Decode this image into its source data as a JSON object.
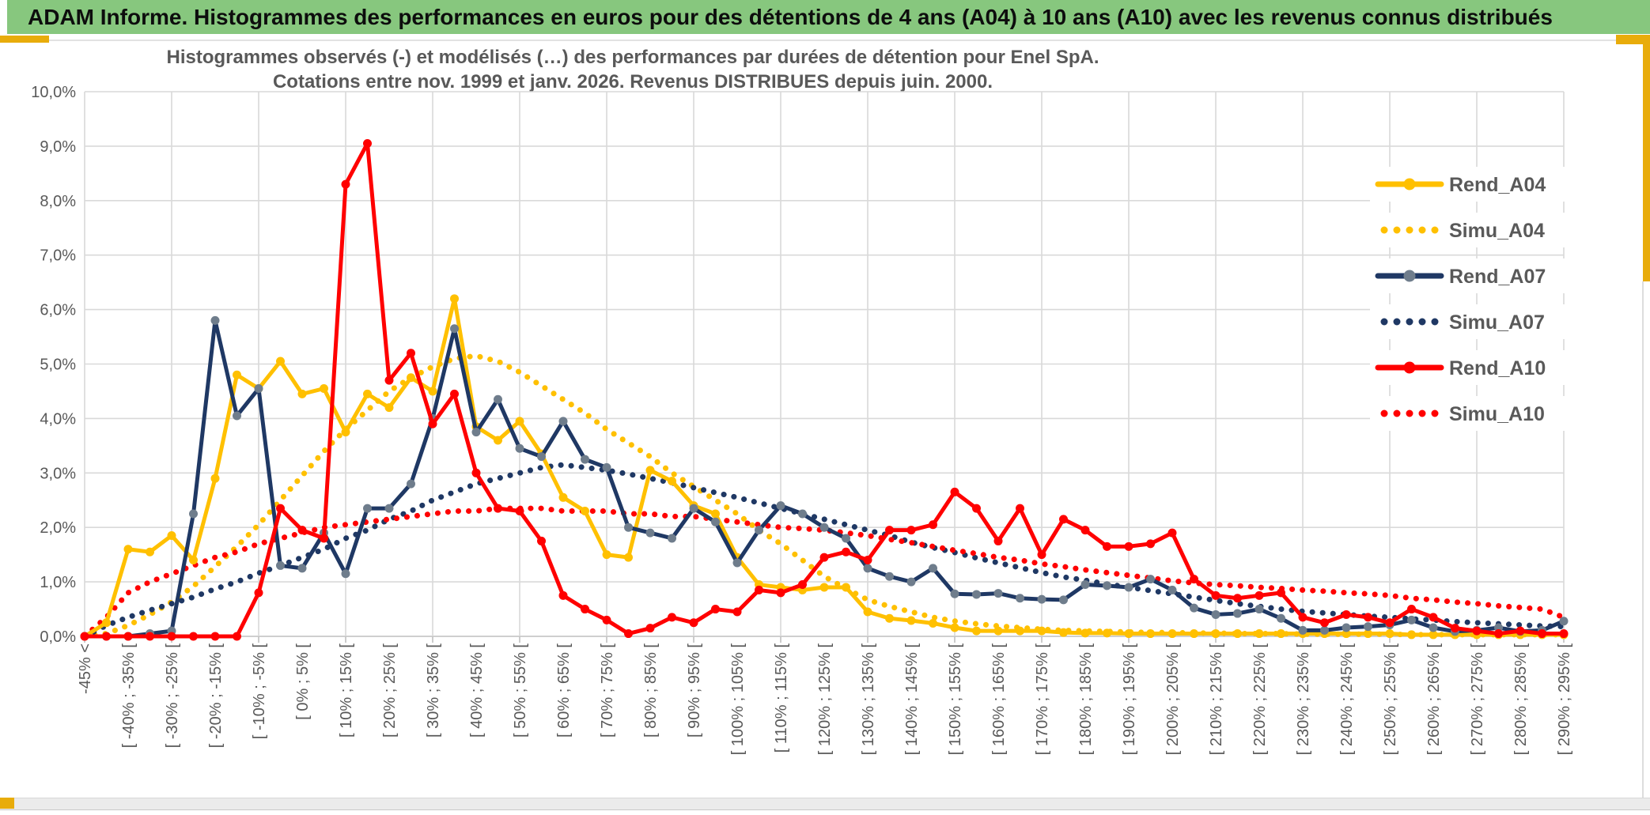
{
  "banner": {
    "title": "ADAM Informe. Histogrammes des performances en euros pour des détentions de 4 ans (A04) à 10 ans (A10) avec les revenus connus distribués"
  },
  "colors": {
    "banner_bg": "#87C77E",
    "accent_gold": "#E8AC0B",
    "series_yellow": "#FFC000",
    "series_navy": "#1F3864",
    "series_red": "#FF0000",
    "navy_marker": "#6F7D8C",
    "grid": "#D9D9D9",
    "axis": "#BFBFBF",
    "text_gray": "#595959"
  },
  "chart_data": {
    "type": "line",
    "title_line1": "Histogrammes observés (-) et modélisés (…) des performances par durées de détention pour Enel SpA.",
    "title_line2": "Cotations entre nov. 1999 et janv. 2026. Revenus DISTRIBUES depuis juin. 2000.",
    "ylim": [
      0,
      10
    ],
    "grid": true,
    "legend_position": "right",
    "y_ticks": [
      "0,0%",
      "1,0%",
      "2,0%",
      "3,0%",
      "4,0%",
      "5,0%",
      "6,0%",
      "7,0%",
      "8,0%",
      "9,0%",
      "10,0%"
    ],
    "n_bins": 69,
    "bin_width_pct": 5,
    "x_label_every": 2,
    "x_tick_labels": [
      "-45% <",
      "[ -40% ; -35% [",
      "[ -30% ; -25% [",
      "[ -20% ; -15% [",
      "[ -10% ; -5% [",
      "[ 0% ; 5% [",
      "[ 10% ; 15% [",
      "[ 20% ; 25% [",
      "[ 30% ; 35% [",
      "[ 40% ; 45% [",
      "[ 50% ; 55% [",
      "[ 60% ; 65% [",
      "[ 70% ; 75% [",
      "[ 80% ; 85% [",
      "[ 90% ; 95% [",
      "[ 100% ; 105% [",
      "[ 110% ; 115% [",
      "[ 120% ; 125% [",
      "[ 130% ; 135% [",
      "[ 140% ; 145% [",
      "[ 150% ; 155% [",
      "[ 160% ; 165% [",
      "[ 170% ; 175% [",
      "[ 180% ; 185% [",
      "[ 190% ; 195% [",
      "[ 200% ; 205% [",
      "[ 210% ; 215% [",
      "[ 220% ; 225% [",
      "[ 230% ; 235% [",
      "[ 240% ; 245% [",
      "[ 250% ; 255% [",
      "[ 260% ; 265% [",
      "[ 270% ; 275% [",
      "[ 280% ; 285% [",
      "[ 290% ; 295% ["
    ],
    "series": [
      {
        "name": "Rend_A04",
        "style": "solid",
        "color": "#FFC000",
        "marker": "#FFC000",
        "values": [
          0,
          0.25,
          1.6,
          1.55,
          1.85,
          1.4,
          2.9,
          4.8,
          4.55,
          5.05,
          4.45,
          4.55,
          3.75,
          4.45,
          4.2,
          4.75,
          4.5,
          6.2,
          3.85,
          3.6,
          3.95,
          3.35,
          2.55,
          2.3,
          1.5,
          1.45,
          3.05,
          2.85,
          2.4,
          2.25,
          1.45,
          0.95,
          0.9,
          0.85,
          0.9,
          0.9,
          0.45,
          0.33,
          0.29,
          0.24,
          0.16,
          0.1,
          0.1,
          0.1,
          0.1,
          0.07,
          0.06,
          0.06,
          0.05,
          0.05,
          0.05,
          0.05,
          0.05,
          0.05,
          0.05,
          0.05,
          0.05,
          0.05,
          0.05,
          0.05,
          0.05,
          0.03,
          0.03,
          0.03,
          0.03,
          0.03,
          0.03,
          0.03,
          0.03
        ]
      },
      {
        "name": "Simu_A04",
        "style": "dotted",
        "color": "#FFC000",
        "values": [
          0,
          0.05,
          0.2,
          0.4,
          0.63,
          0.92,
          1.28,
          1.65,
          2.05,
          2.5,
          2.95,
          3.4,
          3.8,
          4.15,
          4.5,
          4.75,
          4.95,
          5.1,
          5.15,
          5.05,
          4.85,
          4.6,
          4.35,
          4.1,
          3.8,
          3.55,
          3.3,
          3.0,
          2.75,
          2.5,
          2.25,
          1.95,
          1.7,
          1.4,
          1.1,
          0.88,
          0.67,
          0.55,
          0.45,
          0.35,
          0.28,
          0.23,
          0.19,
          0.16,
          0.13,
          0.11,
          0.1,
          0.09,
          0.08,
          0.07,
          0.07,
          0.06,
          0.06,
          0.05,
          0.05,
          0.05,
          0.04,
          0.04,
          0.04,
          0.04,
          0.04,
          0.03,
          0.03,
          0.03,
          0.03,
          0.03,
          0.03,
          0.03,
          0.03
        ]
      },
      {
        "name": "Rend_A07",
        "style": "solid",
        "color": "#1F3864",
        "marker": "#6F7D8C",
        "values": [
          0,
          0,
          0,
          0.05,
          0.1,
          2.25,
          5.8,
          4.05,
          4.55,
          1.3,
          1.25,
          1.9,
          1.15,
          2.35,
          2.35,
          2.8,
          4.0,
          5.65,
          3.75,
          4.35,
          3.45,
          3.3,
          3.95,
          3.25,
          3.1,
          2.0,
          1.9,
          1.8,
          2.35,
          2.1,
          1.35,
          1.95,
          2.4,
          2.25,
          2.0,
          1.8,
          1.25,
          1.1,
          1.0,
          1.25,
          0.78,
          0.77,
          0.79,
          0.7,
          0.68,
          0.67,
          0.95,
          0.93,
          0.9,
          1.05,
          0.85,
          0.52,
          0.4,
          0.42,
          0.5,
          0.33,
          0.11,
          0.11,
          0.16,
          0.18,
          0.21,
          0.3,
          0.16,
          0.09,
          0.11,
          0.16,
          0.09,
          0.11,
          0.28
        ]
      },
      {
        "name": "Simu_A07",
        "style": "dotted",
        "color": "#1F3864",
        "values": [
          0,
          0.2,
          0.35,
          0.48,
          0.6,
          0.72,
          0.87,
          1.0,
          1.16,
          1.3,
          1.45,
          1.6,
          1.8,
          1.95,
          2.15,
          2.3,
          2.5,
          2.65,
          2.8,
          2.9,
          3.0,
          3.1,
          3.15,
          3.1,
          3.05,
          2.98,
          2.9,
          2.82,
          2.73,
          2.64,
          2.55,
          2.45,
          2.35,
          2.25,
          2.15,
          2.05,
          1.95,
          1.85,
          1.73,
          1.63,
          1.54,
          1.44,
          1.35,
          1.26,
          1.17,
          1.09,
          1.03,
          0.96,
          0.9,
          0.84,
          0.78,
          0.72,
          0.66,
          0.6,
          0.55,
          0.5,
          0.46,
          0.43,
          0.4,
          0.37,
          0.35,
          0.32,
          0.3,
          0.27,
          0.25,
          0.23,
          0.21,
          0.19,
          0.18
        ]
      },
      {
        "name": "Rend_A10",
        "style": "solid",
        "color": "#FF0000",
        "marker": "#FF0000",
        "values": [
          0,
          0,
          0,
          0,
          0,
          0,
          0,
          0,
          0.8,
          2.35,
          1.95,
          1.8,
          8.3,
          9.05,
          4.7,
          5.2,
          3.9,
          4.45,
          3.0,
          2.35,
          2.3,
          1.75,
          0.75,
          0.5,
          0.3,
          0.05,
          0.15,
          0.35,
          0.25,
          0.5,
          0.45,
          0.85,
          0.8,
          0.95,
          1.45,
          1.55,
          1.4,
          1.95,
          1.95,
          2.05,
          2.65,
          2.35,
          1.75,
          2.35,
          1.5,
          2.15,
          1.95,
          1.65,
          1.65,
          1.7,
          1.9,
          1.05,
          0.75,
          0.7,
          0.75,
          0.8,
          0.35,
          0.25,
          0.4,
          0.35,
          0.25,
          0.5,
          0.35,
          0.15,
          0.1,
          0.05,
          0.1,
          0.05,
          0.05
        ]
      },
      {
        "name": "Simu_A10",
        "style": "dotted",
        "color": "#FF0000",
        "values": [
          0,
          0.35,
          0.8,
          1.0,
          1.15,
          1.3,
          1.45,
          1.55,
          1.7,
          1.8,
          1.9,
          2.0,
          2.05,
          2.1,
          2.15,
          2.2,
          2.25,
          2.3,
          2.3,
          2.35,
          2.35,
          2.35,
          2.3,
          2.3,
          2.3,
          2.25,
          2.25,
          2.2,
          2.2,
          2.15,
          2.1,
          2.05,
          2.0,
          1.98,
          1.95,
          1.9,
          1.85,
          1.78,
          1.72,
          1.65,
          1.58,
          1.52,
          1.45,
          1.4,
          1.33,
          1.28,
          1.22,
          1.17,
          1.12,
          1.07,
          1.02,
          0.98,
          0.95,
          0.93,
          0.9,
          0.88,
          0.85,
          0.83,
          0.8,
          0.78,
          0.75,
          0.7,
          0.67,
          0.63,
          0.6,
          0.56,
          0.53,
          0.5,
          0.35
        ]
      }
    ]
  }
}
